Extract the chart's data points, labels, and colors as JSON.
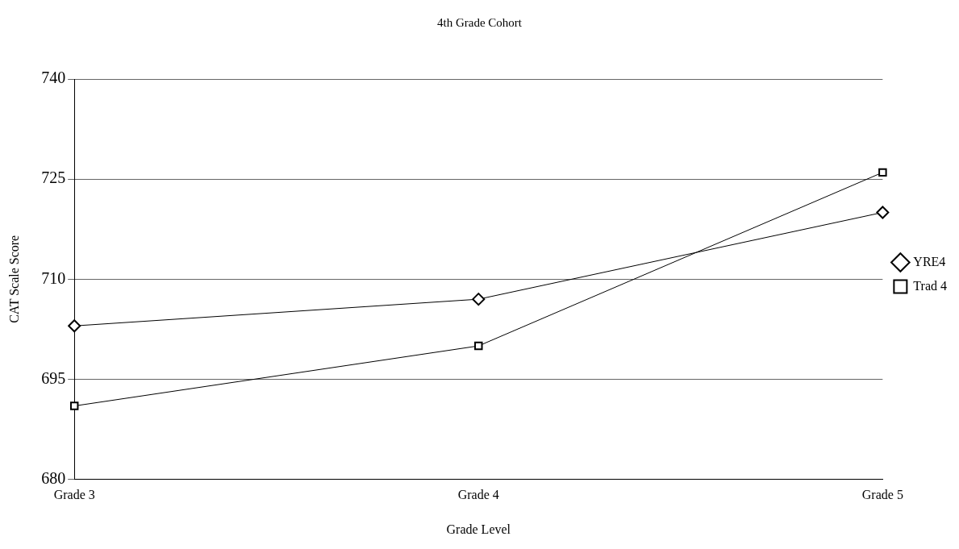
{
  "chart_data": {
    "type": "line",
    "title": "4th Grade Cohort",
    "xlabel": "Grade Level",
    "ylabel": "CAT Scale Score",
    "categories": [
      "Grade 3",
      "Grade 4",
      "Grade 5"
    ],
    "series": [
      {
        "name": "YRE4",
        "color": "#000000",
        "marker": "diamond",
        "values": [
          703,
          707,
          720
        ]
      },
      {
        "name": "Trad 4",
        "color": "#000000",
        "marker": "square",
        "values": [
          691,
          700,
          726
        ]
      }
    ],
    "ylim": [
      680,
      740
    ],
    "yticks": [
      680,
      695,
      710,
      725,
      740
    ],
    "grid": "y",
    "legend": "right"
  }
}
